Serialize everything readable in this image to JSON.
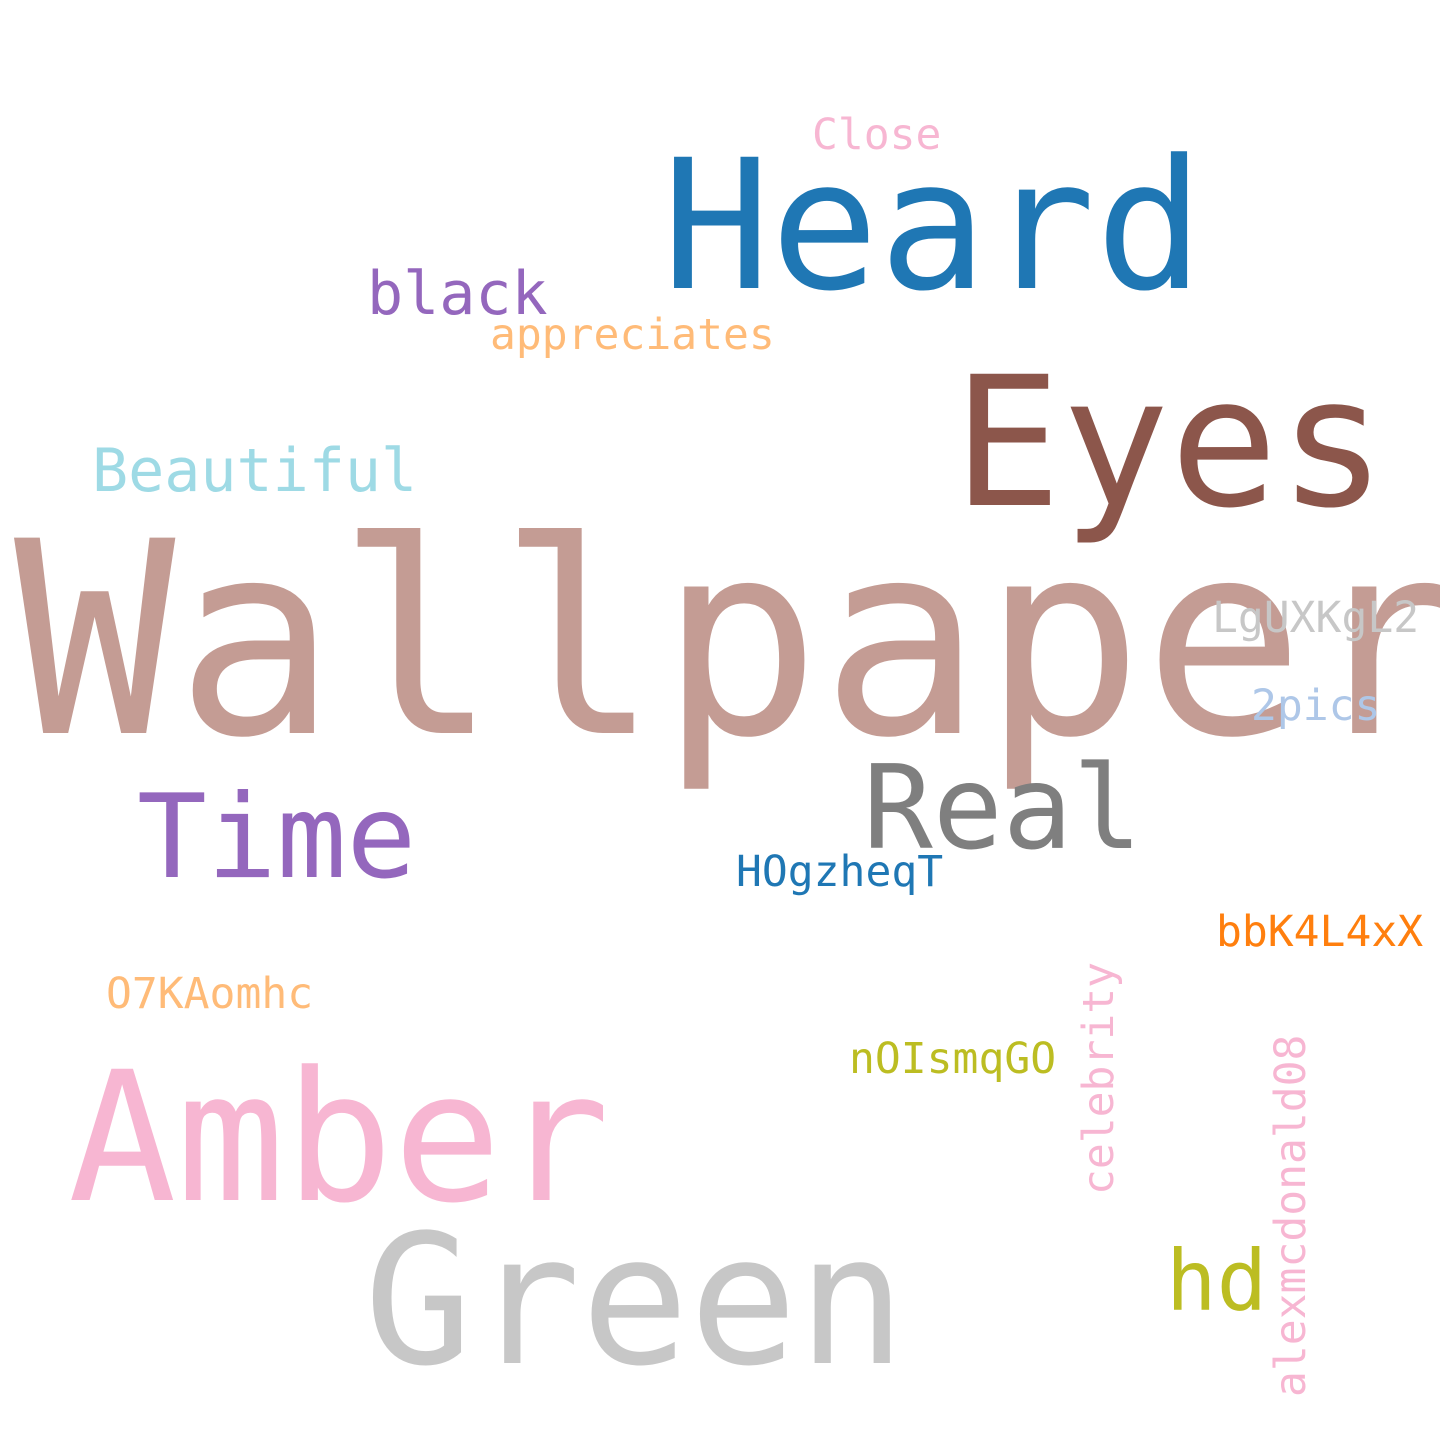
{
  "words": {
    "wallpaper": {
      "text": "Wallpaper",
      "color": "#c49c94"
    },
    "heard": {
      "text": "Heard",
      "color": "#1f77b4"
    },
    "eyes": {
      "text": "Eyes",
      "color": "#8c564b"
    },
    "amber": {
      "text": "Amber",
      "color": "#f7b6d2"
    },
    "green": {
      "text": "Green",
      "color": "#c7c7c7"
    },
    "time": {
      "text": "Time",
      "color": "#9467bd"
    },
    "real": {
      "text": "Real",
      "color": "#7f7f7f"
    },
    "beautiful": {
      "text": "Beautiful",
      "color": "#9edae5"
    },
    "black": {
      "text": "black",
      "color": "#9467bd"
    },
    "appreciates": {
      "text": "appreciates",
      "color": "#ffbb78"
    },
    "close": {
      "text": "Close",
      "color": "#f7b6d2"
    },
    "lgux": {
      "text": "LgUXKgL2",
      "color": "#c7c7c7"
    },
    "pics": {
      "text": "2pics",
      "color": "#aec7e8"
    },
    "hogz": {
      "text": "HOgzheqT",
      "color": "#1f77b4"
    },
    "bbk": {
      "text": "bbK4L4xX",
      "color": "#ff7f0e"
    },
    "o7ka": {
      "text": "O7KAomhc",
      "color": "#ffbb78"
    },
    "noism": {
      "text": "nOIsmqGO",
      "color": "#bcbd22"
    },
    "celebrity": {
      "text": "celebrity",
      "color": "#f7b6d2"
    },
    "alex": {
      "text": "alexmcdonald08",
      "color": "#f7b6d2"
    },
    "hd": {
      "text": "hd",
      "color": "#bcbd22"
    }
  }
}
